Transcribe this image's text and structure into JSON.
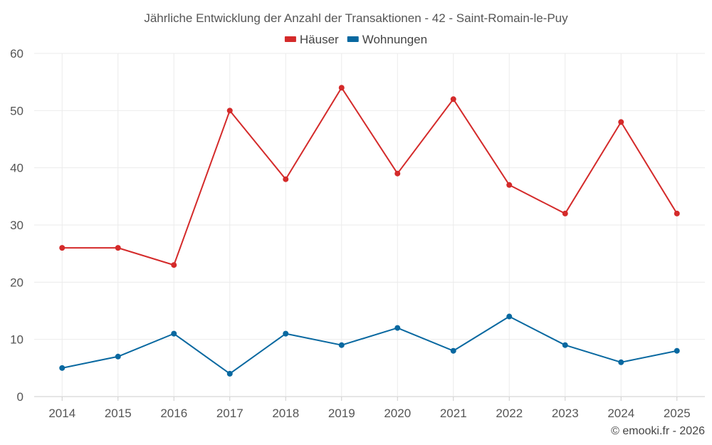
{
  "chart_data": {
    "type": "line",
    "title": "Jährliche Entwicklung der Anzahl der Transaktionen - 42 - Saint-Romain-le-Puy",
    "categories": [
      "2014",
      "2015",
      "2016",
      "2017",
      "2018",
      "2019",
      "2020",
      "2021",
      "2022",
      "2023",
      "2024",
      "2025"
    ],
    "series": [
      {
        "name": "Häuser",
        "color": "#d42a2a",
        "values": [
          26,
          26,
          23,
          50,
          38,
          54,
          39,
          52,
          37,
          32,
          48,
          32
        ]
      },
      {
        "name": "Wohnungen",
        "color": "#0868a0",
        "values": [
          5,
          7,
          11,
          4,
          11,
          9,
          12,
          8,
          14,
          9,
          6,
          8
        ]
      }
    ],
    "ylim": [
      0,
      60
    ],
    "yticks": [
      0,
      10,
      20,
      30,
      40,
      50,
      60
    ],
    "xlabel": "",
    "ylabel": "",
    "grid": true,
    "legend": "top-center"
  },
  "credit": "© emooki.fr - 2026"
}
